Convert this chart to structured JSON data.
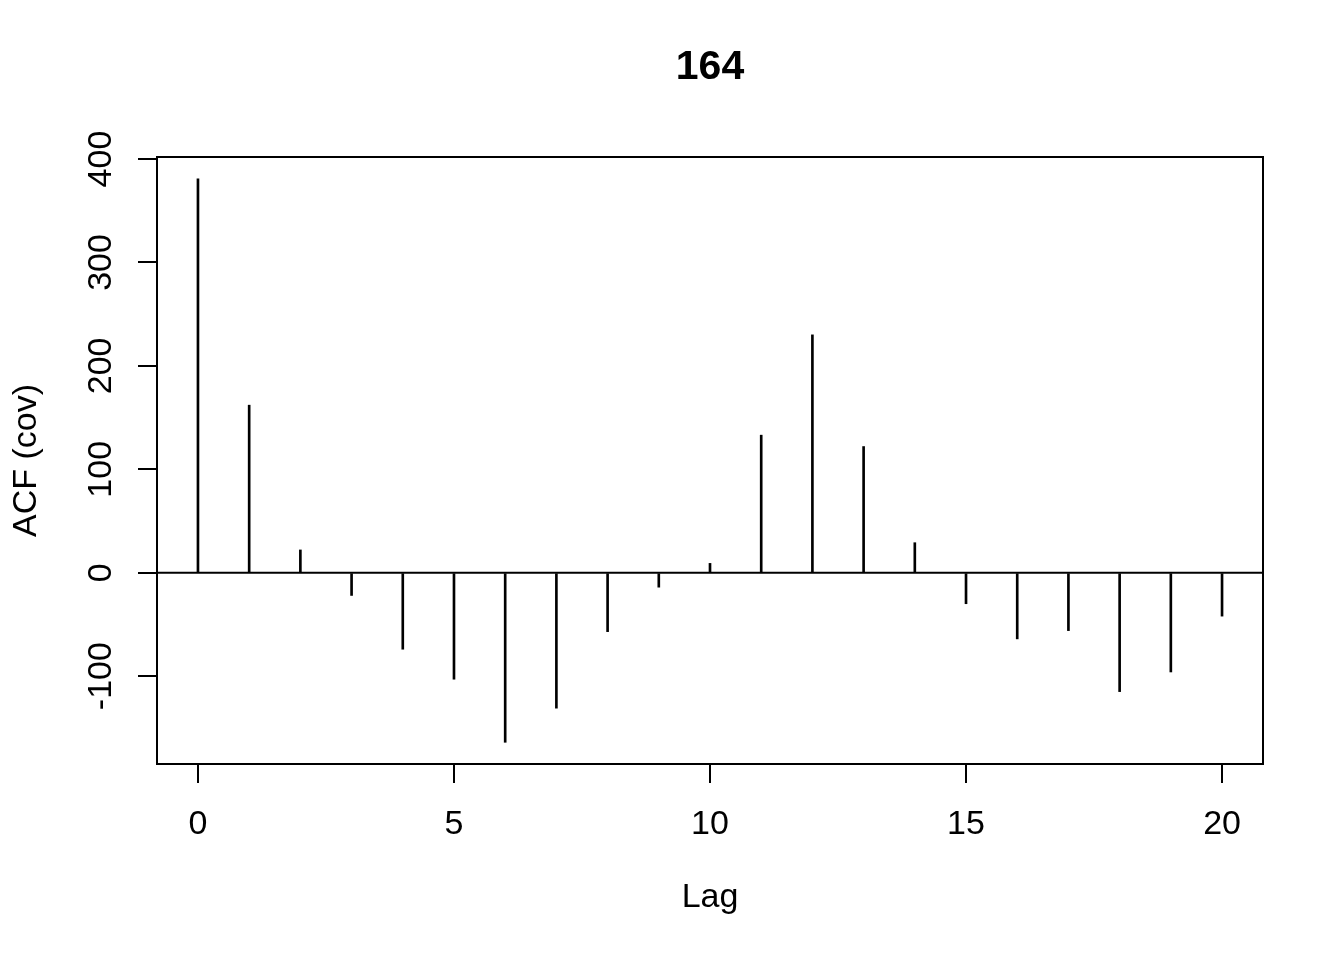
{
  "chart_data": {
    "type": "bar",
    "title": "164",
    "xlabel": "Lag",
    "ylabel": "ACF (cov)",
    "x": [
      0,
      1,
      2,
      3,
      4,
      5,
      6,
      7,
      8,
      9,
      10,
      11,
      12,
      13,
      14,
      15,
      16,
      17,
      18,
      19,
      20
    ],
    "values": [
      381,
      162,
      22,
      -22,
      -74,
      -103,
      -164,
      -131,
      -57,
      -14,
      9,
      133,
      230,
      122,
      29,
      -30,
      -64,
      -56,
      -115,
      -96,
      -42
    ],
    "color": "#000000",
    "xlim": [
      -0.8,
      20.8
    ],
    "xticks": [
      0,
      5,
      10,
      15,
      20
    ],
    "ylim": [
      -185,
      402
    ],
    "yticks": [
      -100,
      0,
      100,
      200,
      300,
      400
    ],
    "ref_lines": [
      {
        "axis": "y",
        "value": 0
      }
    ]
  }
}
